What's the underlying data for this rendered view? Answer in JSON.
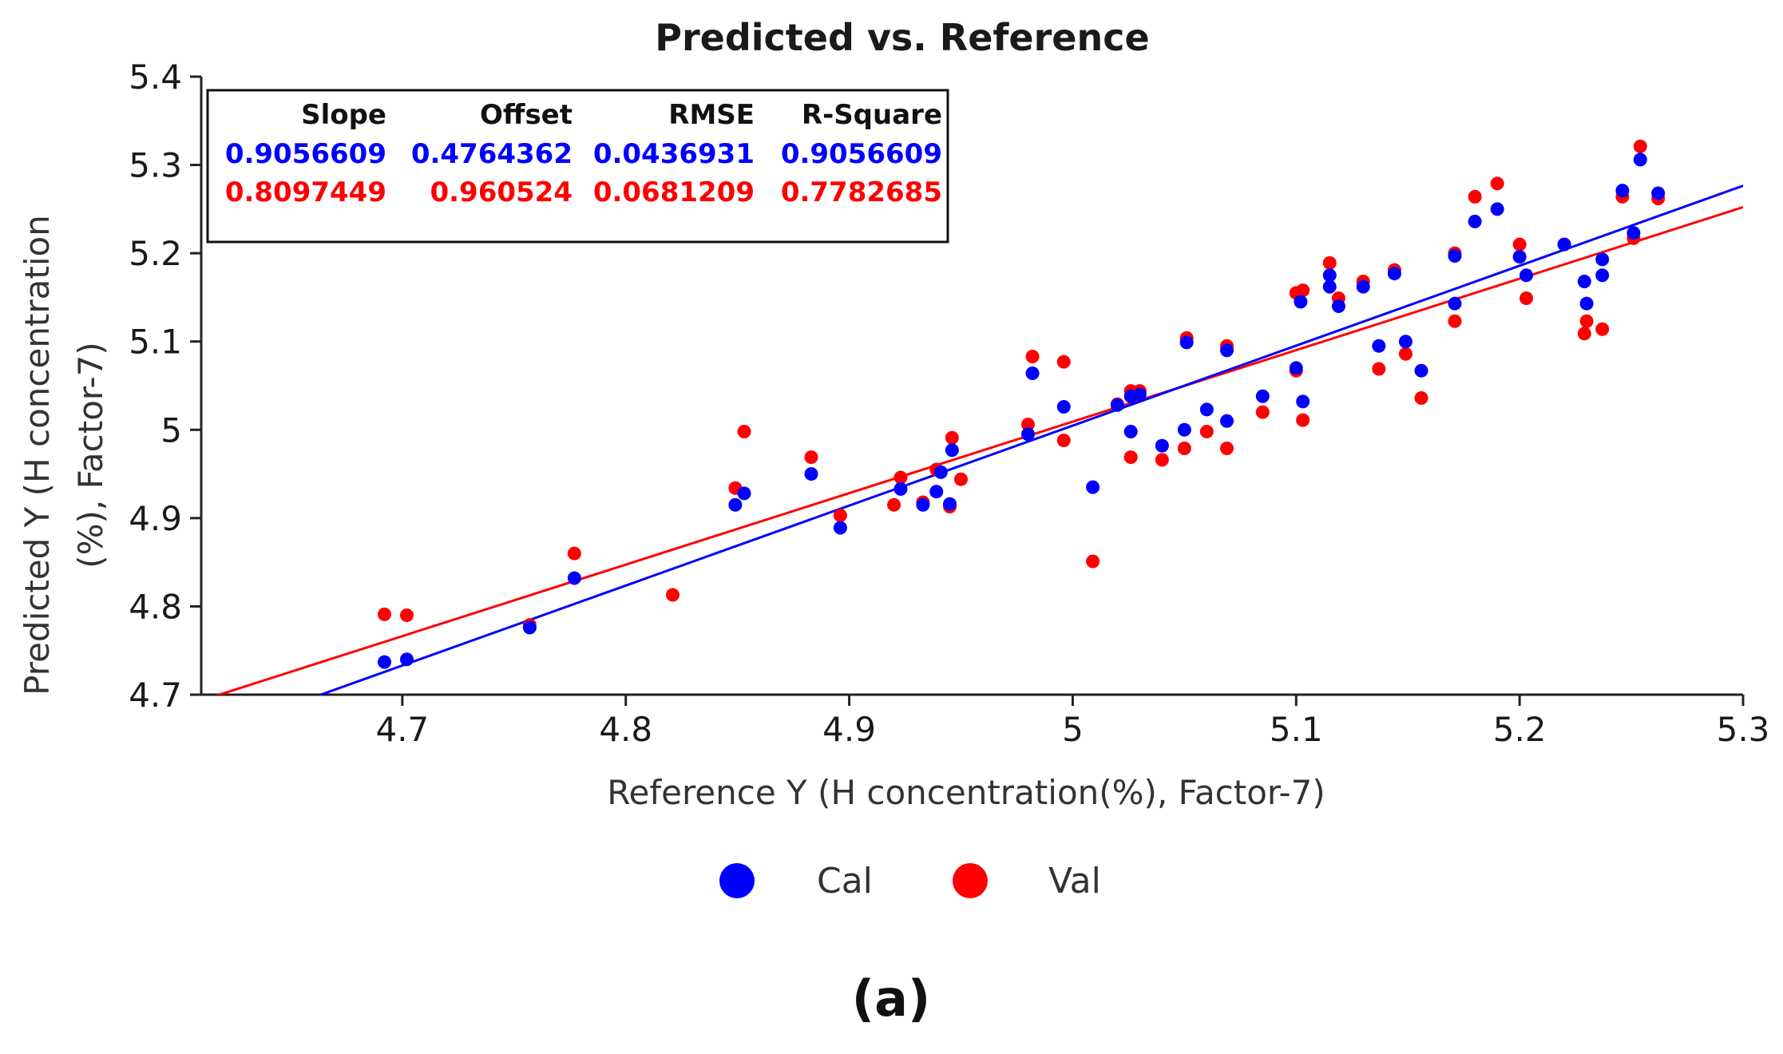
{
  "chart_data": {
    "type": "scatter",
    "title": "Predicted vs. Reference",
    "xlabel": "Reference Y (H concentration(%), Factor-7)",
    "ylabel_lines": [
      "Predicted Y (H concentration",
      "(%), Factor-7)"
    ],
    "xlim": [
      4.61,
      5.3
    ],
    "ylim": [
      4.7,
      5.4
    ],
    "x_ticks": [
      4.7,
      4.8,
      4.9,
      5,
      5.1,
      5.2,
      5.3
    ],
    "x_tick_labels": [
      "4.7",
      "4.8",
      "4.9",
      "5",
      "5.1",
      "5.2",
      "5.3"
    ],
    "y_ticks": [
      4.7,
      4.8,
      4.9,
      5,
      5.1,
      5.2,
      5.3,
      5.4
    ],
    "y_tick_labels": [
      "4.7",
      "4.8",
      "4.9",
      "5",
      "5.1",
      "5.2",
      "5.3",
      "5.4"
    ],
    "grid": false,
    "legend_position": "bottom-center",
    "stats_table": {
      "headers": [
        "Slope",
        "Offset",
        "RMSE",
        "R-Square"
      ],
      "rows": [
        {
          "series": "Cal",
          "values": [
            "0.9056609",
            "0.4764362",
            "0.0436931",
            "0.9056609"
          ]
        },
        {
          "series": "Val",
          "values": [
            "0.8097449",
            "0.960524",
            "0.0681209",
            "0.7782685"
          ]
        }
      ]
    },
    "series": [
      {
        "name": "Cal",
        "color": "#0000ff",
        "regression": {
          "slope": 0.9056609,
          "offset": 0.4764362
        },
        "points": [
          [
            4.692,
            4.737
          ],
          [
            4.702,
            4.74
          ],
          [
            4.757,
            4.776
          ],
          [
            4.777,
            4.832
          ],
          [
            4.849,
            4.915
          ],
          [
            4.853,
            4.928
          ],
          [
            4.883,
            4.95
          ],
          [
            4.896,
            4.889
          ],
          [
            4.923,
            4.933
          ],
          [
            4.933,
            4.915
          ],
          [
            4.939,
            4.93
          ],
          [
            4.941,
            4.952
          ],
          [
            4.945,
            4.916
          ],
          [
            4.946,
            4.977
          ],
          [
            4.98,
            4.995
          ],
          [
            4.982,
            5.064
          ],
          [
            4.996,
            5.026
          ],
          [
            5.009,
            4.935
          ],
          [
            5.02,
            5.028
          ],
          [
            5.026,
            4.998
          ],
          [
            5.026,
            5.038
          ],
          [
            5.03,
            5.04
          ],
          [
            5.04,
            4.982
          ],
          [
            5.05,
            5.0
          ],
          [
            5.051,
            5.099
          ],
          [
            5.06,
            5.023
          ],
          [
            5.069,
            5.01
          ],
          [
            5.069,
            5.09
          ],
          [
            5.085,
            5.038
          ],
          [
            5.1,
            5.07
          ],
          [
            5.102,
            5.145
          ],
          [
            5.103,
            5.032
          ],
          [
            5.115,
            5.175
          ],
          [
            5.115,
            5.162
          ],
          [
            5.119,
            5.14
          ],
          [
            5.13,
            5.162
          ],
          [
            5.137,
            5.095
          ],
          [
            5.144,
            5.177
          ],
          [
            5.149,
            5.1
          ],
          [
            5.156,
            5.067
          ],
          [
            5.171,
            5.143
          ],
          [
            5.171,
            5.197
          ],
          [
            5.18,
            5.236
          ],
          [
            5.19,
            5.25
          ],
          [
            5.2,
            5.196
          ],
          [
            5.203,
            5.175
          ],
          [
            5.22,
            5.21
          ],
          [
            5.229,
            5.168
          ],
          [
            5.23,
            5.143
          ],
          [
            5.237,
            5.175
          ],
          [
            5.237,
            5.193
          ],
          [
            5.246,
            5.271
          ],
          [
            5.251,
            5.223
          ],
          [
            5.254,
            5.306
          ],
          [
            5.262,
            5.268
          ]
        ]
      },
      {
        "name": "Val",
        "color": "#ff0000",
        "regression": {
          "slope": 0.8097449,
          "offset": 0.960524
        },
        "points": [
          [
            4.692,
            4.791
          ],
          [
            4.702,
            4.79
          ],
          [
            4.757,
            4.779
          ],
          [
            4.777,
            4.86
          ],
          [
            4.821,
            4.813
          ],
          [
            4.849,
            4.934
          ],
          [
            4.853,
            4.998
          ],
          [
            4.883,
            4.969
          ],
          [
            4.896,
            4.903
          ],
          [
            4.92,
            4.915
          ],
          [
            4.923,
            4.946
          ],
          [
            4.933,
            4.918
          ],
          [
            4.939,
            4.955
          ],
          [
            4.945,
            4.913
          ],
          [
            4.946,
            4.991
          ],
          [
            4.95,
            4.944
          ],
          [
            4.98,
            5.006
          ],
          [
            4.982,
            5.083
          ],
          [
            4.996,
            4.988
          ],
          [
            4.996,
            5.077
          ],
          [
            5.009,
            4.851
          ],
          [
            5.02,
            5.029
          ],
          [
            5.026,
            4.969
          ],
          [
            5.026,
            5.044
          ],
          [
            5.03,
            5.044
          ],
          [
            5.04,
            4.966
          ],
          [
            5.05,
            4.979
          ],
          [
            5.051,
            5.104
          ],
          [
            5.06,
            4.998
          ],
          [
            5.069,
            4.979
          ],
          [
            5.069,
            5.095
          ],
          [
            5.085,
            5.02
          ],
          [
            5.1,
            5.067
          ],
          [
            5.1,
            5.155
          ],
          [
            5.103,
            5.011
          ],
          [
            5.103,
            5.158
          ],
          [
            5.115,
            5.189
          ],
          [
            5.119,
            5.149
          ],
          [
            5.13,
            5.168
          ],
          [
            5.137,
            5.069
          ],
          [
            5.144,
            5.181
          ],
          [
            5.149,
            5.086
          ],
          [
            5.156,
            5.036
          ],
          [
            5.171,
            5.123
          ],
          [
            5.171,
            5.2
          ],
          [
            5.18,
            5.264
          ],
          [
            5.19,
            5.279
          ],
          [
            5.2,
            5.21
          ],
          [
            5.203,
            5.149
          ],
          [
            5.22,
            5.21
          ],
          [
            5.229,
            5.109
          ],
          [
            5.23,
            5.123
          ],
          [
            5.237,
            5.114
          ],
          [
            5.246,
            5.264
          ],
          [
            5.251,
            5.217
          ],
          [
            5.254,
            5.321
          ],
          [
            5.262,
            5.262
          ]
        ]
      }
    ]
  },
  "legend": {
    "items": [
      {
        "label": "Cal",
        "color": "#0000ff"
      },
      {
        "label": "Val",
        "color": "#ff0000"
      }
    ]
  },
  "caption": "(a)"
}
